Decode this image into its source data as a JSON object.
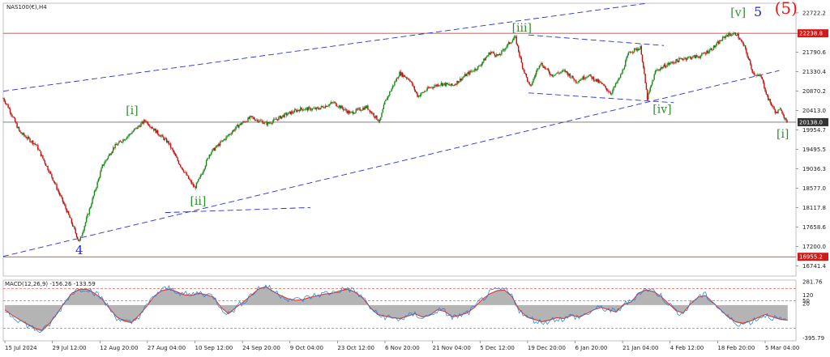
{
  "chart_data": {
    "type": "line",
    "title": "NAS100(€),H4",
    "price_panel": {
      "ylim": [
        16500,
        22950
      ],
      "y_ticks": [
        "22722.2",
        "22238.8",
        "21790.6",
        "21330.4",
        "20870.2",
        "20413.0",
        "19954.7",
        "19495.5",
        "19036.3",
        "18577.0",
        "18117.8",
        "17658.6",
        "17200.0",
        "16741.4"
      ],
      "horizontal_levels": [
        {
          "value": 22238.8,
          "label": "22238.8",
          "color": "#d01a1a"
        },
        {
          "value": 20138.0,
          "label": "20138.0",
          "color": "#333333"
        },
        {
          "value": 16955.2,
          "label": "16955.2",
          "color": "#d01a1a"
        }
      ],
      "candle_colors": {
        "up": "#1a8a1a",
        "down": "#c01010"
      },
      "price_path": [
        {
          "x": 0.0,
          "y": 20700
        },
        {
          "x": 0.3,
          "y": 20500
        },
        {
          "x": 1.0,
          "y": 19900
        },
        {
          "x": 2.0,
          "y": 19600
        },
        {
          "x": 3.0,
          "y": 18800
        },
        {
          "x": 4.0,
          "y": 17900
        },
        {
          "x": 4.6,
          "y": 17300
        },
        {
          "x": 5.2,
          "y": 18050
        },
        {
          "x": 6.0,
          "y": 19100
        },
        {
          "x": 6.7,
          "y": 19550
        },
        {
          "x": 7.5,
          "y": 19800
        },
        {
          "x": 8.6,
          "y": 20180
        },
        {
          "x": 9.3,
          "y": 19900
        },
        {
          "x": 10.0,
          "y": 19650
        },
        {
          "x": 10.6,
          "y": 19200
        },
        {
          "x": 11.3,
          "y": 18750
        },
        {
          "x": 11.6,
          "y": 18580
        },
        {
          "x": 12.0,
          "y": 18900
        },
        {
          "x": 12.5,
          "y": 19400
        },
        {
          "x": 13.3,
          "y": 19700
        },
        {
          "x": 14.2,
          "y": 20050
        },
        {
          "x": 15.0,
          "y": 20250
        },
        {
          "x": 16.0,
          "y": 20100
        },
        {
          "x": 17.0,
          "y": 20300
        },
        {
          "x": 18.0,
          "y": 20450
        },
        {
          "x": 19.0,
          "y": 20450
        },
        {
          "x": 20.0,
          "y": 20600
        },
        {
          "x": 21.0,
          "y": 20350
        },
        {
          "x": 22.0,
          "y": 20500
        },
        {
          "x": 22.8,
          "y": 20150
        },
        {
          "x": 23.1,
          "y": 20600
        },
        {
          "x": 23.6,
          "y": 21000
        },
        {
          "x": 24.0,
          "y": 21300
        },
        {
          "x": 24.6,
          "y": 21150
        },
        {
          "x": 25.1,
          "y": 20750
        },
        {
          "x": 25.8,
          "y": 20950
        },
        {
          "x": 26.5,
          "y": 21050
        },
        {
          "x": 27.2,
          "y": 21000
        },
        {
          "x": 28.0,
          "y": 21250
        },
        {
          "x": 28.8,
          "y": 21450
        },
        {
          "x": 29.5,
          "y": 21800
        },
        {
          "x": 30.0,
          "y": 21700
        },
        {
          "x": 30.5,
          "y": 21950
        },
        {
          "x": 31.0,
          "y": 22150
        },
        {
          "x": 31.4,
          "y": 21500
        },
        {
          "x": 31.9,
          "y": 20950
        },
        {
          "x": 32.5,
          "y": 21550
        },
        {
          "x": 33.2,
          "y": 21250
        },
        {
          "x": 34.0,
          "y": 21350
        },
        {
          "x": 34.7,
          "y": 21100
        },
        {
          "x": 35.4,
          "y": 21250
        },
        {
          "x": 36.2,
          "y": 21050
        },
        {
          "x": 36.8,
          "y": 20820
        },
        {
          "x": 37.4,
          "y": 21250
        },
        {
          "x": 37.9,
          "y": 21800
        },
        {
          "x": 38.6,
          "y": 21900
        },
        {
          "x": 39.0,
          "y": 20700
        },
        {
          "x": 39.5,
          "y": 21350
        },
        {
          "x": 40.2,
          "y": 21500
        },
        {
          "x": 41.2,
          "y": 21650
        },
        {
          "x": 42.2,
          "y": 21700
        },
        {
          "x": 43.0,
          "y": 21900
        },
        {
          "x": 43.8,
          "y": 22200
        },
        {
          "x": 44.4,
          "y": 22230
        },
        {
          "x": 44.9,
          "y": 21900
        },
        {
          "x": 45.4,
          "y": 21300
        },
        {
          "x": 45.9,
          "y": 21200
        },
        {
          "x": 46.3,
          "y": 20700
        },
        {
          "x": 46.8,
          "y": 20350
        },
        {
          "x": 47.1,
          "y": 20450
        },
        {
          "x": 47.5,
          "y": 20050
        }
      ]
    },
    "wave_labels": [
      {
        "text": "4",
        "x": 4.6,
        "y": 17020,
        "color": "#1f27c8",
        "size": 15
      },
      {
        "text": "[i]",
        "x": 7.8,
        "y": 20330,
        "color": "#2f8f2f",
        "size": 14
      },
      {
        "text": "[ii]",
        "x": 11.8,
        "y": 18180,
        "color": "#2f8f2f",
        "size": 14
      },
      {
        "text": "[iii]",
        "x": 31.4,
        "y": 22280,
        "color": "#2f8f2f",
        "size": 14
      },
      {
        "text": "[iv]",
        "x": 39.9,
        "y": 20360,
        "color": "#2f8f2f",
        "size": 14
      },
      {
        "text": "[v]",
        "x": 44.5,
        "y": 22640,
        "color": "#2f8f2f",
        "size": 14
      },
      {
        "text": "5",
        "x": 45.7,
        "y": 22640,
        "color": "#1f27c8",
        "size": 16
      },
      {
        "text": "(5)",
        "x": 47.4,
        "y": 22700,
        "color": "#e01818",
        "size": 20
      },
      {
        "text": "[i]",
        "x": 47.2,
        "y": 19770,
        "color": "#2f8f2f",
        "size": 14
      }
    ],
    "trendlines": [
      {
        "from": {
          "x": 0,
          "y": 20870
        },
        "to": {
          "x": 39,
          "y": 22950
        }
      },
      {
        "from": {
          "x": 0,
          "y": 16965
        },
        "to": {
          "x": 47,
          "y": 21360
        }
      },
      {
        "from": {
          "x": 9.8,
          "y": 18000
        },
        "to": {
          "x": 18.6,
          "y": 18120
        }
      },
      {
        "from": {
          "x": 31.8,
          "y": 22200
        },
        "to": {
          "x": 40.0,
          "y": 21950
        }
      },
      {
        "from": {
          "x": 31.8,
          "y": 20830
        },
        "to": {
          "x": 40.6,
          "y": 20600
        }
      }
    ],
    "macd_panel": {
      "label": "MACD(12,26,9) -156.26 -133.59",
      "ylim": [
        -430,
        300
      ],
      "y_ticks": [
        "281.76",
        "120",
        "50",
        "20",
        "-395.79"
      ],
      "dashed_levels": [
        200,
        50,
        -280
      ],
      "signal_color": "#e0342a",
      "macd_color": "#1e7be0",
      "hist_color": "#b4b4b4",
      "histogram": [
        -60,
        -130,
        -185,
        -240,
        -290,
        -320,
        -230,
        -110,
        30,
        150,
        195,
        200,
        150,
        80,
        -40,
        -150,
        -200,
        -220,
        -130,
        -20,
        110,
        180,
        200,
        170,
        130,
        120,
        150,
        130,
        100,
        -30,
        -110,
        -30,
        40,
        120,
        200,
        230,
        170,
        120,
        80,
        60,
        70,
        100,
        120,
        140,
        150,
        180,
        200,
        160,
        90,
        -30,
        -120,
        -140,
        -160,
        -170,
        -140,
        -110,
        -150,
        -130,
        -60,
        -80,
        -150,
        -130,
        -100,
        -30,
        70,
        140,
        180,
        190,
        110,
        -60,
        -150,
        -180,
        -210,
        -190,
        -160,
        -170,
        -130,
        -150,
        -110,
        -60,
        -30,
        -60,
        -90,
        10,
        40,
        150,
        190,
        170,
        110,
        20,
        -70,
        -100,
        20,
        100,
        120,
        30,
        -60,
        -150,
        -210,
        -230,
        -200,
        -160,
        -120,
        -150,
        -180,
        -190
      ],
      "macd_noise": 40
    },
    "x_axis": {
      "labels": [
        "15 Jul 2024",
        "29 Jul 12:00",
        "12 Aug 20:00",
        "27 Aug 04:00",
        "10 Sep 12:00",
        "24 Sep 20:00",
        "9 Oct 04:00",
        "23 Oct 12:00",
        "6 Nov 20:00",
        "21 Nov 04:00",
        "5 Dec 12:00",
        "19 Dec 20:00",
        "6 Jan 20:00",
        "21 Jan 04:00",
        "4 Feb 12:00",
        "18 Feb 20:00",
        "5 Mar 04:00"
      ],
      "range": [
        0,
        48
      ]
    },
    "grid": false
  }
}
